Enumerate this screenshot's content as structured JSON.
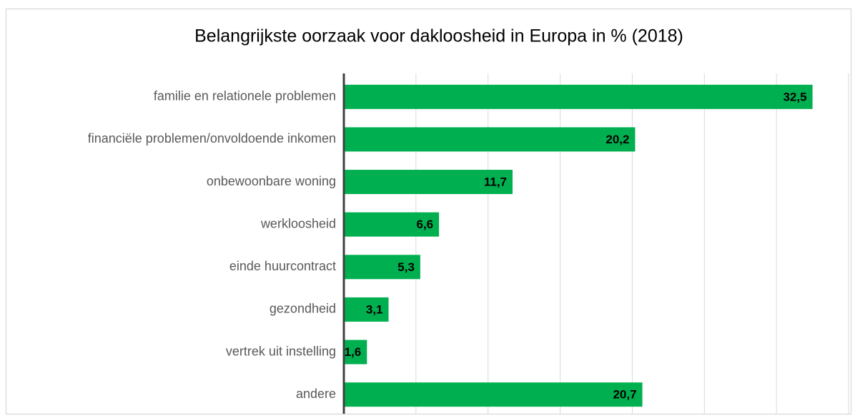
{
  "chart_data": {
    "type": "barh",
    "title": "Belangrijkste oorzaak voor dakloosheid in Europa in % (2018)",
    "categories": [
      "familie en relationele problemen",
      "financiële problemen/onvoldoende inkomen",
      "onbewoonbare woning",
      "werkloosheid",
      "einde huurcontract",
      "gezondheid",
      "vertrek uit instelling",
      "andere"
    ],
    "values": [
      32.5,
      20.2,
      11.7,
      6.6,
      5.3,
      3.1,
      1.6,
      20.7
    ],
    "value_labels": [
      "32,5",
      "20,2",
      "11,7",
      "6,6",
      "5,3",
      "3,1",
      "1,6",
      "20,7"
    ],
    "color": "#00b050",
    "xlim": [
      0,
      35
    ],
    "xticks": [
      0,
      5,
      10,
      15,
      20,
      25,
      30,
      35
    ],
    "grid": true
  }
}
